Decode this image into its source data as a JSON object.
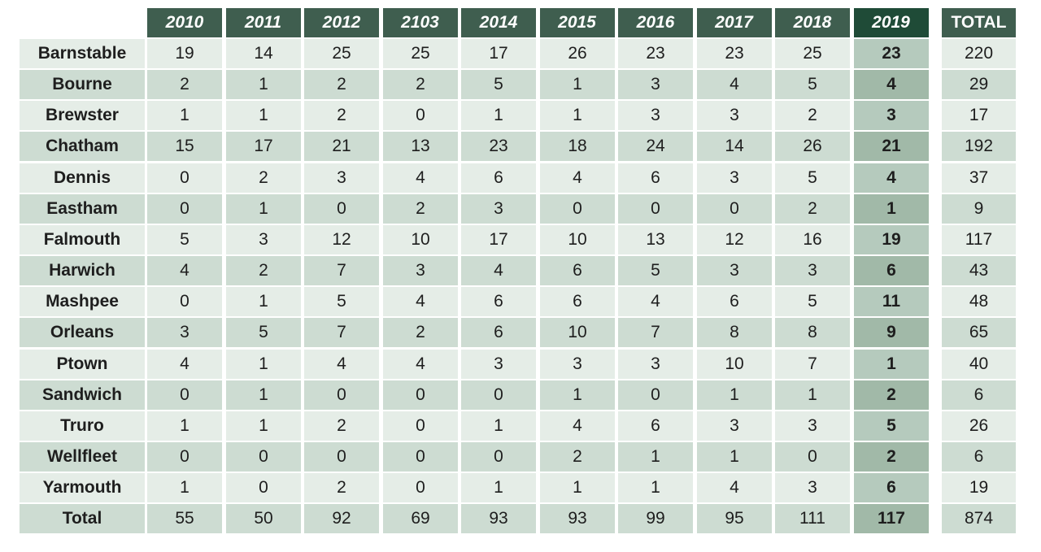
{
  "chart_data": {
    "type": "table",
    "columns": [
      "2010",
      "2011",
      "2012",
      "2103",
      "2014",
      "2015",
      "2016",
      "2017",
      "2018",
      "2019"
    ],
    "total_header": "TOTAL",
    "highlight_column": "2019",
    "rows": [
      {
        "label": "Barnstable",
        "values": [
          19,
          14,
          25,
          25,
          17,
          26,
          23,
          23,
          25,
          23
        ],
        "total": 220
      },
      {
        "label": "Bourne",
        "values": [
          2,
          1,
          2,
          2,
          5,
          1,
          3,
          4,
          5,
          4
        ],
        "total": 29
      },
      {
        "label": "Brewster",
        "values": [
          1,
          1,
          2,
          0,
          1,
          1,
          3,
          3,
          2,
          3
        ],
        "total": 17
      },
      {
        "label": "Chatham",
        "values": [
          15,
          17,
          21,
          13,
          23,
          18,
          24,
          14,
          26,
          21
        ],
        "total": 192
      },
      {
        "label": "Dennis",
        "values": [
          0,
          2,
          3,
          4,
          6,
          4,
          6,
          3,
          5,
          4
        ],
        "total": 37
      },
      {
        "label": "Eastham",
        "values": [
          0,
          1,
          0,
          2,
          3,
          0,
          0,
          0,
          2,
          1
        ],
        "total": 9
      },
      {
        "label": "Falmouth",
        "values": [
          5,
          3,
          12,
          10,
          17,
          10,
          13,
          12,
          16,
          19
        ],
        "total": 117
      },
      {
        "label": "Harwich",
        "values": [
          4,
          2,
          7,
          3,
          4,
          6,
          5,
          3,
          3,
          6
        ],
        "total": 43
      },
      {
        "label": "Mashpee",
        "values": [
          0,
          1,
          5,
          4,
          6,
          6,
          4,
          6,
          5,
          11
        ],
        "total": 48
      },
      {
        "label": "Orleans",
        "values": [
          3,
          5,
          7,
          2,
          6,
          10,
          7,
          8,
          8,
          9
        ],
        "total": 65
      },
      {
        "label": "Ptown",
        "values": [
          4,
          1,
          4,
          4,
          3,
          3,
          3,
          10,
          7,
          1
        ],
        "total": 40
      },
      {
        "label": "Sandwich",
        "values": [
          0,
          1,
          0,
          0,
          0,
          1,
          0,
          1,
          1,
          2
        ],
        "total": 6
      },
      {
        "label": "Truro",
        "values": [
          1,
          1,
          2,
          0,
          1,
          4,
          6,
          3,
          3,
          5
        ],
        "total": 26
      },
      {
        "label": "Wellfleet",
        "values": [
          0,
          0,
          0,
          0,
          0,
          2,
          1,
          1,
          0,
          2
        ],
        "total": 6
      },
      {
        "label": "Yarmouth",
        "values": [
          1,
          0,
          2,
          0,
          1,
          1,
          1,
          4,
          3,
          6
        ],
        "total": 19
      },
      {
        "label": "Total",
        "values": [
          55,
          50,
          92,
          69,
          93,
          93,
          99,
          95,
          111,
          117
        ],
        "total": 874
      }
    ],
    "colors": {
      "header": "#3f5e4f",
      "header_highlight": "#1f4b37",
      "row_odd": "#e5ede7",
      "row_even": "#cddcd2",
      "highlight_odd": "#b5cabd",
      "highlight_even": "#a1b9a8"
    }
  }
}
